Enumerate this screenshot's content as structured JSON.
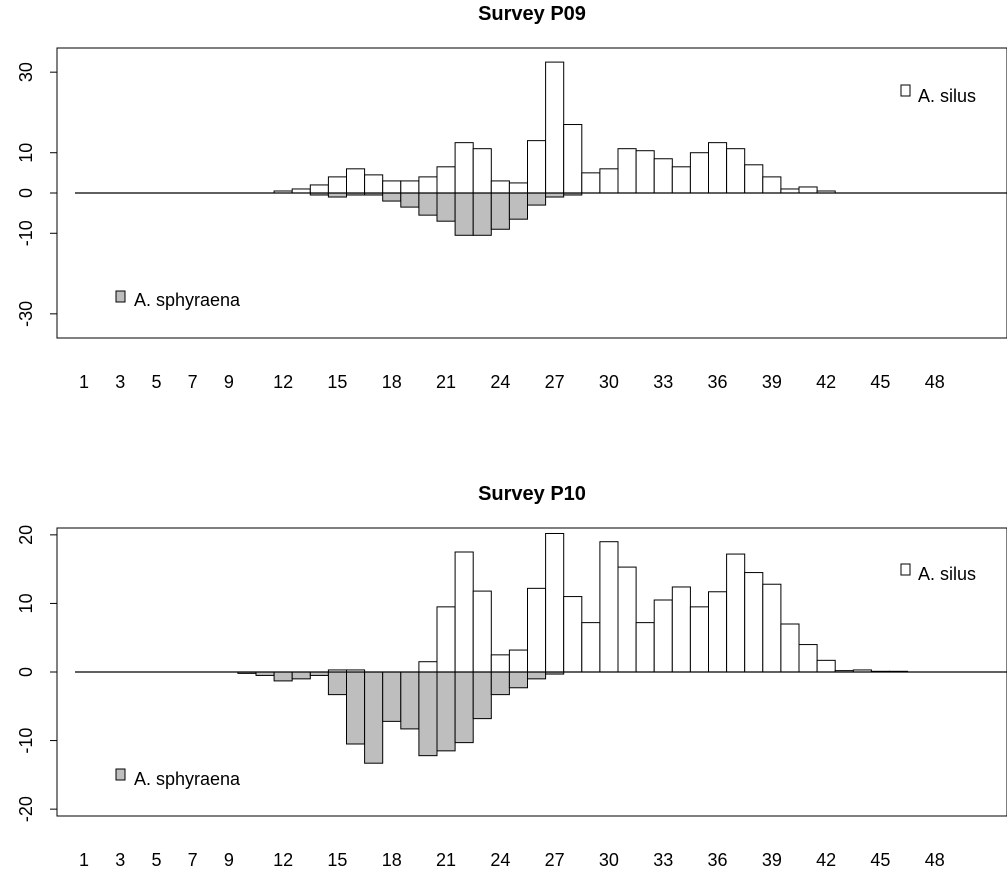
{
  "chart_data": [
    {
      "type": "bar",
      "title": "Survey P09",
      "xlabel": "",
      "ylabel": "",
      "ylim": [
        -36,
        36
      ],
      "y_ticks": [
        -30,
        -10,
        0,
        10,
        30
      ],
      "x": [
        1,
        2,
        3,
        4,
        5,
        6,
        7,
        8,
        9,
        10,
        11,
        12,
        13,
        14,
        15,
        16,
        17,
        18,
        19,
        20,
        21,
        22,
        23,
        24,
        25,
        26,
        27,
        28,
        29,
        30,
        31,
        32,
        33,
        34,
        35,
        36,
        37,
        38,
        39,
        40,
        41,
        42,
        43,
        44,
        45,
        46,
        47,
        48,
        49,
        50
      ],
      "x_tick_labels": [
        "1",
        "3",
        "5",
        "7",
        "9",
        "12",
        "15",
        "18",
        "21",
        "24",
        "27",
        "30",
        "33",
        "36",
        "39",
        "42",
        "45",
        "48"
      ],
      "series": [
        {
          "name": "A. silus",
          "color": "#ffffff",
          "values": [
            0,
            0,
            0,
            0,
            0,
            0,
            0,
            0,
            0,
            0,
            0,
            0.5,
            1,
            2,
            4,
            6,
            4.5,
            3,
            3,
            4,
            6.5,
            12.5,
            11,
            3,
            2.5,
            13,
            32.5,
            17,
            5,
            6,
            11,
            10.5,
            8.5,
            6.5,
            10,
            12.5,
            11,
            7,
            4,
            1,
            1.5,
            0.5,
            0,
            0,
            0,
            0,
            0,
            0,
            0,
            0
          ]
        },
        {
          "name": "A. sphyraena",
          "color": "#bebebe",
          "values": [
            0,
            0,
            0,
            0,
            0,
            0,
            0,
            0,
            0,
            0,
            0,
            0,
            0,
            -0.5,
            -1,
            -0.5,
            -0.5,
            -2,
            -3.5,
            -5.5,
            -7,
            -10.5,
            -10.5,
            -9,
            -6.5,
            -3,
            -1,
            -0.5,
            0,
            0,
            0,
            0,
            0,
            0,
            0,
            0,
            0,
            0,
            0,
            0,
            0,
            0,
            0,
            0,
            0,
            0,
            0,
            0,
            0,
            0
          ]
        }
      ],
      "legend": [
        "A. silus",
        "A. sphyraena"
      ],
      "grid": false
    },
    {
      "type": "bar",
      "title": "Survey P10",
      "xlabel": "",
      "ylabel": "",
      "ylim": [
        -21,
        21
      ],
      "y_ticks": [
        -20,
        -10,
        0,
        10,
        20
      ],
      "x": [
        1,
        2,
        3,
        4,
        5,
        6,
        7,
        8,
        9,
        10,
        11,
        12,
        13,
        14,
        15,
        16,
        17,
        18,
        19,
        20,
        21,
        22,
        23,
        24,
        25,
        26,
        27,
        28,
        29,
        30,
        31,
        32,
        33,
        34,
        35,
        36,
        37,
        38,
        39,
        40,
        41,
        42,
        43,
        44,
        45,
        46,
        47,
        48,
        49,
        50
      ],
      "x_tick_labels": [
        "1",
        "3",
        "5",
        "7",
        "9",
        "12",
        "15",
        "18",
        "21",
        "24",
        "27",
        "30",
        "33",
        "36",
        "39",
        "42",
        "45",
        "48"
      ],
      "series": [
        {
          "name": "A. silus",
          "color": "#ffffff",
          "values": [
            0,
            0,
            0,
            0,
            0,
            0,
            0,
            0,
            0,
            0,
            0,
            0,
            0,
            0,
            0.3,
            0.3,
            0,
            0,
            0,
            1.5,
            9.5,
            17.5,
            11.8,
            2.5,
            3.2,
            12.2,
            20.2,
            11,
            7.2,
            19,
            15.3,
            7.2,
            10.5,
            12.4,
            9.5,
            11.7,
            17.2,
            14.5,
            12.8,
            7,
            4,
            1.7,
            0.2,
            0.3,
            0.1,
            0.1,
            0,
            0,
            0,
            0
          ]
        },
        {
          "name": "A. sphyraena",
          "color": "#bebebe",
          "values": [
            0,
            0,
            0,
            0,
            0,
            0,
            0,
            0,
            0,
            -0.2,
            -0.5,
            -1.3,
            -1,
            -0.5,
            -3.3,
            -10.5,
            -13.3,
            -7.2,
            -8.3,
            -12.2,
            -11.5,
            -10.3,
            -6.8,
            -3.3,
            -2.3,
            -1,
            -0.3,
            0,
            0,
            0,
            0,
            0,
            0,
            0,
            0,
            0,
            0,
            0,
            0,
            0,
            0,
            0,
            0,
            0,
            0,
            0,
            0,
            0,
            0,
            0
          ]
        }
      ],
      "legend": [
        "A. silus",
        "A. sphyraena"
      ],
      "grid": false
    }
  ]
}
